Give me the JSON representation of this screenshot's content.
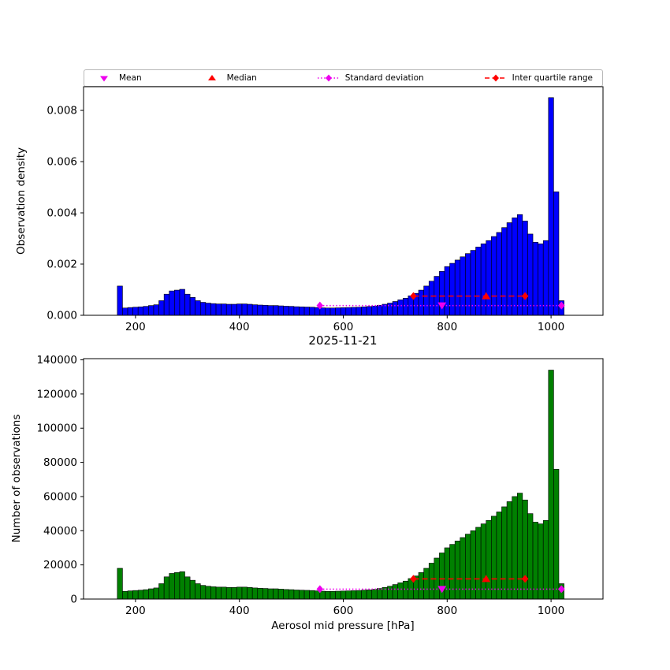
{
  "colors": {
    "bar_blue": "#0000ff",
    "bar_green": "#008000",
    "bar_edge": "#000000",
    "magenta": "#ee00ee",
    "red": "#ff0000"
  },
  "legend": {
    "items": [
      {
        "label": "Mean",
        "marker": "triangle-down",
        "color": "#ee00ee"
      },
      {
        "label": "Median",
        "marker": "triangle-up",
        "color": "#ff0000"
      },
      {
        "label": "Standard deviation",
        "marker": "diamond-dotted-line",
        "color": "#ee00ee"
      },
      {
        "label": "Inter quartile range",
        "marker": "diamond-dashed-line",
        "color": "#ff0000"
      }
    ]
  },
  "chart_data": [
    {
      "type": "bar",
      "title": "",
      "ylabel": "Observation density",
      "xlabel": "",
      "xlim": [
        100,
        1100
      ],
      "ylim": [
        0,
        0.008925
      ],
      "xticks": [
        200,
        400,
        600,
        800,
        1000
      ],
      "xtick_labels": [
        "200",
        "400",
        "600",
        "800",
        "1000"
      ],
      "yticks": [
        0.0,
        0.002,
        0.004,
        0.006,
        0.008
      ],
      "ytick_labels": [
        "0.000",
        "0.002",
        "0.004",
        "0.006",
        "0.008"
      ],
      "bar_color": "#0000ff",
      "bin_start": 165,
      "bin_width": 10,
      "values": [
        0.001142,
        0.000285,
        0.000304,
        0.000317,
        0.00033,
        0.000349,
        0.000381,
        0.000412,
        0.000571,
        0.000825,
        0.000951,
        0.000983,
        0.001015,
        0.000825,
        0.000698,
        0.000571,
        0.000507,
        0.000476,
        0.000457,
        0.000444,
        0.000444,
        0.000431,
        0.000431,
        0.000444,
        0.000444,
        0.000431,
        0.000412,
        0.0004,
        0.000393,
        0.000381,
        0.000381,
        0.000368,
        0.000355,
        0.000349,
        0.000336,
        0.00033,
        0.000323,
        0.000317,
        0.000304,
        0.000292,
        0.000285,
        0.000285,
        0.000292,
        0.000298,
        0.000304,
        0.000311,
        0.000317,
        0.00033,
        0.000343,
        0.000362,
        0.000393,
        0.000431,
        0.000476,
        0.000539,
        0.000603,
        0.000666,
        0.000761,
        0.000856,
        0.000983,
        0.001142,
        0.001332,
        0.001522,
        0.001713,
        0.001903,
        0.00203,
        0.002157,
        0.002284,
        0.00241,
        0.002537,
        0.002664,
        0.002791,
        0.002918,
        0.003076,
        0.003235,
        0.003425,
        0.003616,
        0.003806,
        0.003933,
        0.003679,
        0.003172,
        0.002854,
        0.002791,
        0.002918,
        0.0085,
        0.004821,
        0.000571
      ],
      "markers": {
        "mean": {
          "x": 790,
          "y": 0.00038
        },
        "median": {
          "x": 875,
          "y": 0.00075
        },
        "std_range": {
          "x1": 555,
          "x2": 1020,
          "y": 0.00038
        },
        "iqr_range": {
          "x1": 735,
          "x2": 950,
          "y": 0.00075
        }
      }
    },
    {
      "type": "bar",
      "title": "2025-11-21",
      "ylabel": "Number of observations",
      "xlabel": "Aerosol mid pressure [hPa]",
      "xlim": [
        100,
        1100
      ],
      "ylim": [
        0,
        140700
      ],
      "xticks": [
        200,
        400,
        600,
        800,
        1000
      ],
      "xtick_labels": [
        "200",
        "400",
        "600",
        "800",
        "1000"
      ],
      "yticks": [
        0,
        20000,
        40000,
        60000,
        80000,
        100000,
        120000,
        140000
      ],
      "ytick_labels": [
        "0",
        "20000",
        "40000",
        "60000",
        "80000",
        "100000",
        "120000",
        "140000"
      ],
      "bar_color": "#008000",
      "bin_start": 165,
      "bin_width": 10,
      "values": [
        18000,
        4500,
        4800,
        5000,
        5200,
        5500,
        6000,
        6500,
        9000,
        13000,
        15000,
        15500,
        16000,
        13000,
        11000,
        9000,
        8000,
        7500,
        7200,
        7000,
        7000,
        6800,
        6800,
        7000,
        7000,
        6800,
        6500,
        6300,
        6200,
        6000,
        6000,
        5800,
        5600,
        5500,
        5300,
        5200,
        5100,
        5000,
        4800,
        4600,
        4500,
        4500,
        4600,
        4700,
        4800,
        4900,
        5000,
        5200,
        5400,
        5700,
        6200,
        6800,
        7500,
        8500,
        9500,
        10500,
        12000,
        13500,
        15500,
        18000,
        21000,
        24000,
        27000,
        30000,
        32000,
        34000,
        36000,
        38000,
        40000,
        42000,
        44000,
        46000,
        48500,
        51000,
        54000,
        57000,
        60000,
        62000,
        58000,
        50000,
        45000,
        44000,
        46000,
        134000,
        76000,
        9000
      ],
      "markers": {
        "mean": {
          "x": 790,
          "y": 5800
        },
        "median": {
          "x": 875,
          "y": 11800
        },
        "std_range": {
          "x1": 555,
          "x2": 1020,
          "y": 5800
        },
        "iqr_range": {
          "x1": 735,
          "x2": 950,
          "y": 11800
        }
      }
    }
  ]
}
